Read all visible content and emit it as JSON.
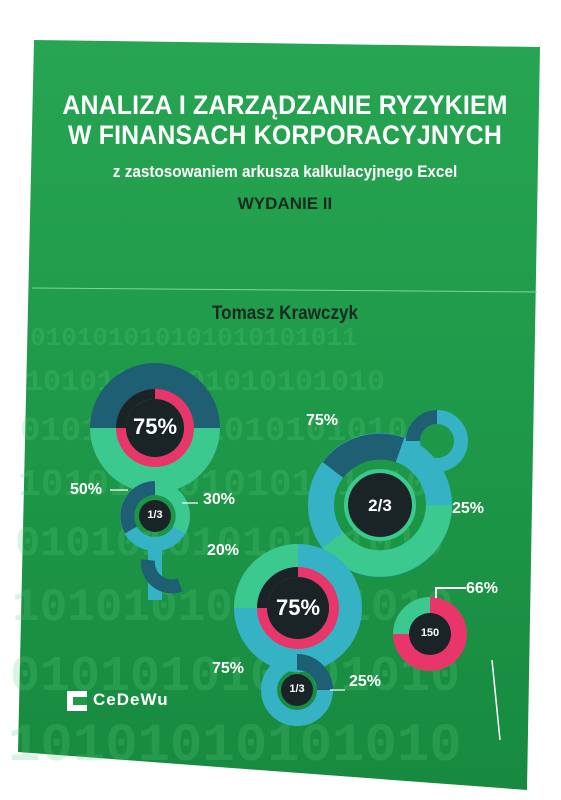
{
  "book": {
    "title_line1": "ANALIZA I ZARZĄDZANIE RYZYKIEM",
    "title_line2": "W FINANSACH KORPORACYJNYCH",
    "subtitle": "z zastosowaniem arkusza kalkulacyjnego Excel",
    "edition": "WYDANIE II",
    "author": "Tomasz Krawczyk",
    "publisher": "CeDeWu"
  },
  "infographic": {
    "big_top_center": "75%",
    "label_50": "50%",
    "label_30": "30%",
    "label_20": "20%",
    "small_top_center": "1/3",
    "label_75_top": "75%",
    "right_center": "2/3",
    "label_25_right": "25%",
    "big_bottom_center": "75%",
    "label_75_bottom": "75%",
    "small_bottom_center": "1/3",
    "label_25_bottom": "25%",
    "pie_center": "150",
    "label_66": "66%"
  },
  "colors": {
    "cover_green": "#1f9a4a",
    "dark_teal": "#1e5f73",
    "pink": "#e8366b",
    "light_teal": "#35b3c4",
    "mint": "#3cc98f",
    "dark": "#1a2326"
  }
}
